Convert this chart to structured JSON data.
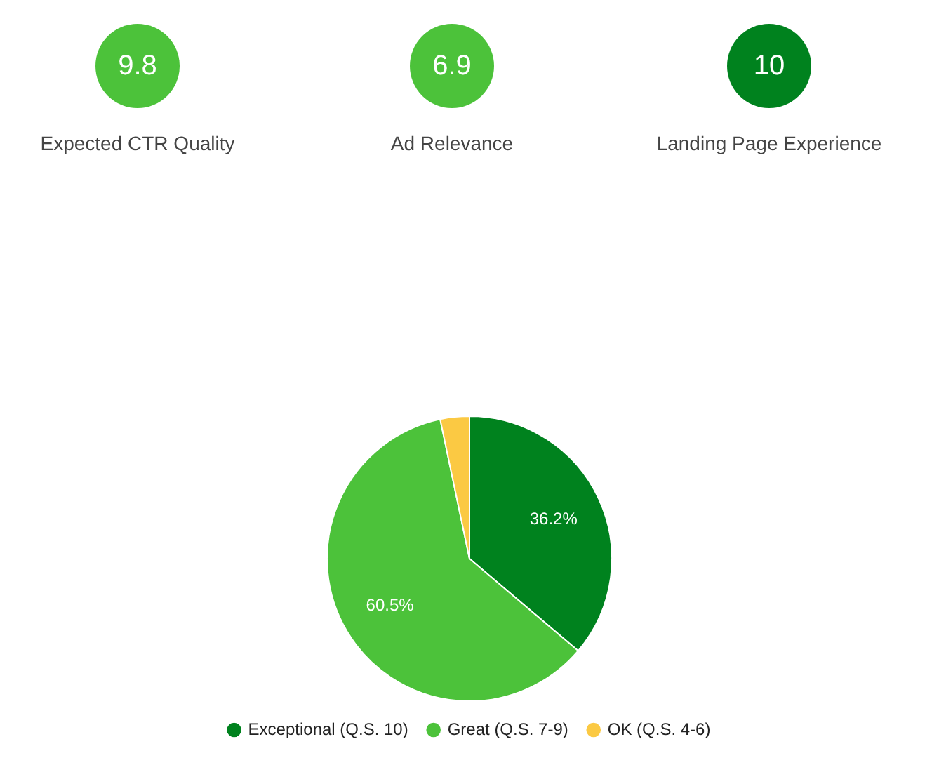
{
  "chart_data": [
    {
      "type": "other",
      "categories": [
        "Expected CTR Quality",
        "Ad Relevance",
        "Landing Page Experience"
      ],
      "values": [
        9.8,
        6.9,
        10
      ],
      "data_labels": true,
      "colors": [
        "#4cc23a",
        "#4cc23a",
        "#00821e"
      ]
    },
    {
      "type": "pie",
      "categories": [
        "Exceptional (Q.S. 10)",
        "Great (Q.S. 7-9)",
        "OK (Q.S. 4-6)"
      ],
      "values": [
        36.2,
        60.5,
        3.3
      ],
      "colors": [
        "#00821e",
        "#4cc23a",
        "#fbc943"
      ],
      "value_labels": [
        "36.2%",
        "60.5%",
        null
      ],
      "legend": "bottom"
    }
  ]
}
